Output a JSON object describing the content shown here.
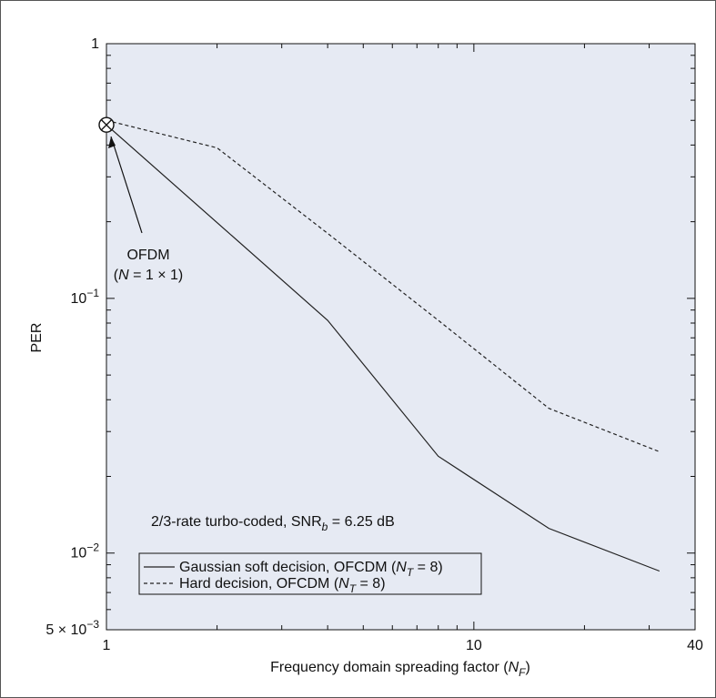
{
  "chart_data": {
    "type": "line",
    "title": "",
    "xlabel": "Frequency domain spreading factor (N_F)",
    "xlabel_parts": {
      "text": "Frequency domain spreading factor (",
      "var": "N",
      "sub": "F",
      "close": ")"
    },
    "ylabel": "PER",
    "xscale": "log",
    "yscale": "log",
    "xlim": [
      1,
      40
    ],
    "ylim": [
      0.005,
      1
    ],
    "xticks": [
      {
        "value": 1,
        "label": "1"
      },
      {
        "value": 10,
        "label": "10"
      },
      {
        "value": 40,
        "label": "40"
      }
    ],
    "yticks": [
      {
        "value": 1,
        "label": "1",
        "base": "1",
        "exp": ""
      },
      {
        "value": 0.1,
        "label": "10^-1",
        "base": "10",
        "exp": "−1"
      },
      {
        "value": 0.01,
        "label": "10^-2",
        "base": "10",
        "exp": "−2"
      },
      {
        "value": 0.005,
        "label": "5 × 10^-3",
        "base": "5 × 10",
        "exp": "−3"
      }
    ],
    "grid": false,
    "background_color": "#e6eaf3",
    "legend_position": "bottom-left",
    "series": [
      {
        "name": "Gaussian soft decision, OFCDM (N_T = 8)",
        "legend_parts": {
          "pre": "Gaussian soft decision, OFCDM (",
          "var": "N",
          "sub": "T",
          "post": " = 8)"
        },
        "line_style": "solid",
        "color": "#222222",
        "x": [
          1,
          4,
          8,
          16,
          32
        ],
        "y": [
          0.48,
          0.082,
          0.024,
          0.0125,
          0.0085
        ]
      },
      {
        "name": "Hard decision, OFCDM (N_T = 8)",
        "legend_parts": {
          "pre": "Hard decision, OFCDM (",
          "var": "N",
          "sub": "T",
          "post": " = 8)"
        },
        "line_style": "dashed",
        "color": "#222222",
        "x": [
          1,
          2,
          4,
          8,
          16,
          32
        ],
        "y": [
          0.5,
          0.39,
          0.18,
          0.082,
          0.037,
          0.025
        ]
      }
    ],
    "marker": {
      "label": "OFDM",
      "x": 1,
      "y": 0.48,
      "symbol": "circled-x"
    },
    "annotations": [
      {
        "id": "ofdm-line1",
        "text": "OFDM"
      },
      {
        "id": "ofdm-line2",
        "parts": {
          "pre": "(",
          "var": "N",
          "post": " = 1 × 1)"
        }
      },
      {
        "id": "condition",
        "parts": {
          "pre": "2/3-rate turbo-coded, SNR",
          "sub": "b",
          "post": " = 6.25 dB"
        }
      }
    ]
  }
}
